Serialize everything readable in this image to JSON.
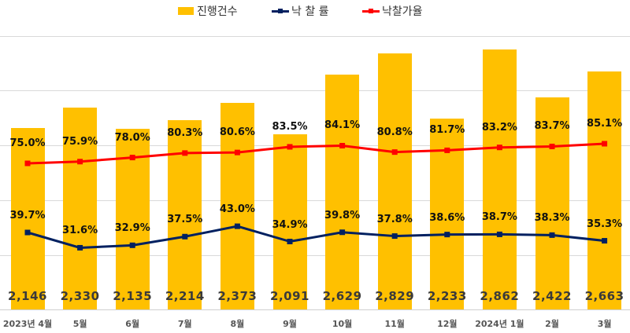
{
  "legend": {
    "bar": "진행건수",
    "line1": "낙 찰 률",
    "line2": "낙찰가율"
  },
  "colors": {
    "bar": "#FFC000",
    "line1": "#002060",
    "line2": "#FF0000"
  },
  "chart_data": {
    "type": "bar+line",
    "title": "",
    "categories": [
      "2023년 4월",
      "5월",
      "6월",
      "7월",
      "8월",
      "9월",
      "10월",
      "11월",
      "12월",
      "2024년 1월",
      "2월",
      "3월"
    ],
    "series": [
      {
        "name": "진행건수",
        "type": "bar",
        "values": [
          2146,
          2330,
          2135,
          2214,
          2373,
          2091,
          2629,
          2829,
          2233,
          2862,
          2422,
          2663
        ],
        "labels": [
          "2,146",
          "2,330",
          "2,135",
          "2,214",
          "2,373",
          "2,091",
          "2,629",
          "2,829",
          "2,233",
          "2,862",
          "2,422",
          "2,663"
        ]
      },
      {
        "name": "낙 찰 률",
        "type": "line",
        "values": [
          39.7,
          31.6,
          32.9,
          37.5,
          43.0,
          34.9,
          39.8,
          37.8,
          38.6,
          38.7,
          38.3,
          35.3
        ],
        "labels": [
          "39.7%",
          "31.6%",
          "32.9%",
          "37.5%",
          "43.0%",
          "34.9%",
          "39.8%",
          "37.8%",
          "38.6%",
          "38.7%",
          "38.3%",
          "35.3%"
        ]
      },
      {
        "name": "낙찰가율",
        "type": "line",
        "values": [
          75.0,
          75.9,
          78.0,
          80.3,
          80.6,
          83.5,
          84.1,
          80.8,
          81.7,
          83.2,
          83.7,
          85.1
        ],
        "labels": [
          "75.0%",
          "75.9%",
          "78.0%",
          "80.3%",
          "80.6%",
          "83.5%",
          "84.1%",
          "80.8%",
          "81.7%",
          "83.2%",
          "83.7%",
          "85.1%"
        ]
      }
    ],
    "xlabel": "",
    "ylabel": "",
    "grid": true,
    "legend_position": "top"
  }
}
